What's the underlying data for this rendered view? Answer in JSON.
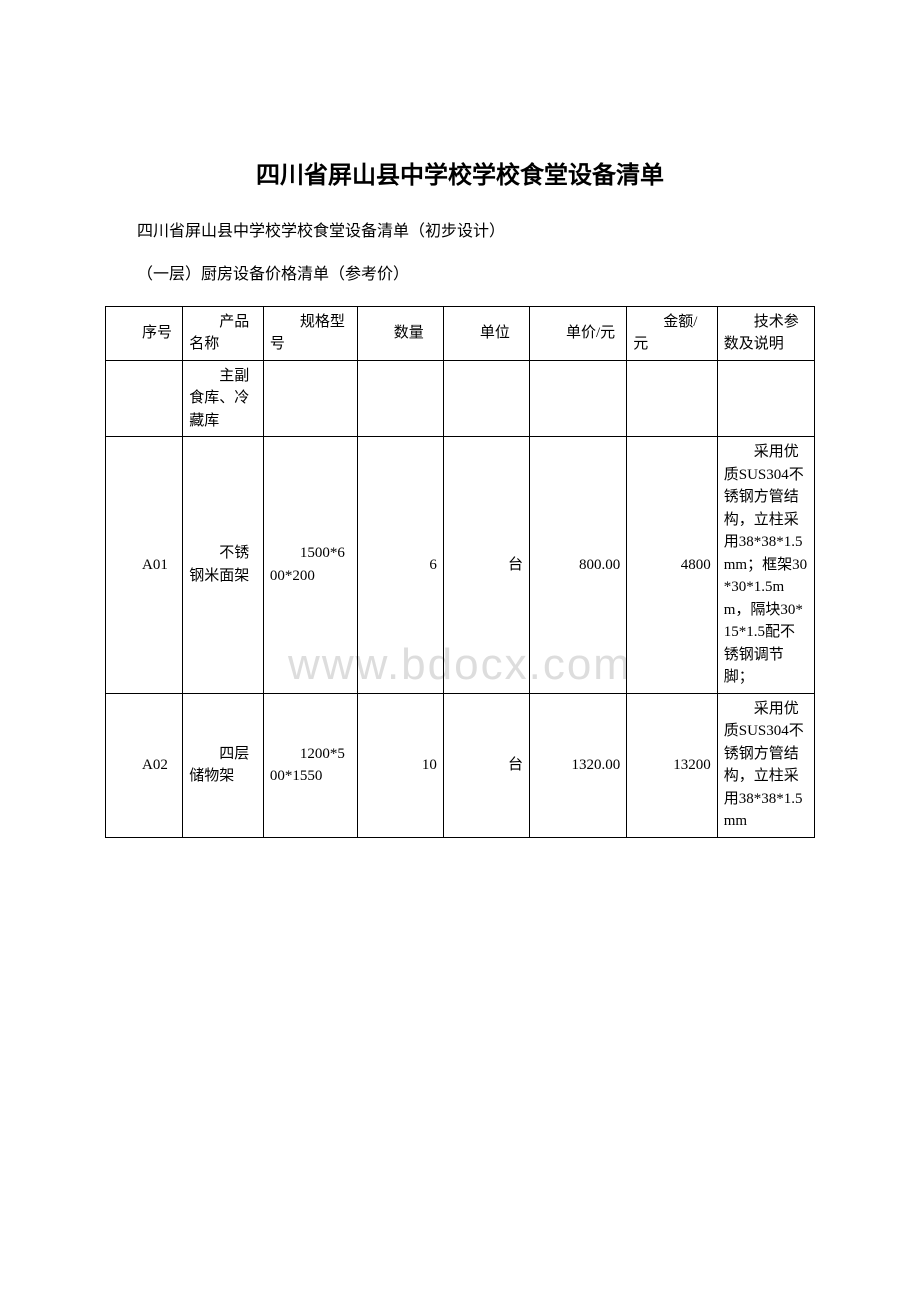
{
  "title": "四川省屏山县中学校学校食堂设备清单",
  "subtitle1": "四川省屏山县中学校学校食堂设备清单（初步设计）",
  "subtitle2": "（一层）厨房设备价格清单（参考价）",
  "watermark": "www.bdocx.com",
  "table": {
    "headers": {
      "col1": "序号",
      "col2": "产品名称",
      "col3": "规格型号",
      "col4": "数量",
      "col5": "单位",
      "col6": "单价/元",
      "col7": "金额/元",
      "col8": "技术参数及说明"
    },
    "section_row": {
      "col2": "主副食库、冷藏库"
    },
    "rows": [
      {
        "col1": "A01",
        "col2": "不锈钢米面架",
        "col3": "1500*600*200",
        "col4": "6",
        "col5": "台",
        "col6": "800.00",
        "col7": "4800",
        "col8": "采用优质SUS304不锈钢方管结构，立柱采用38*38*1.5mm；框架30*30*1.5mm，隔块30*15*1.5配不锈钢调节脚；"
      },
      {
        "col1": "A02",
        "col2": "四层储物架",
        "col3": "1200*500*1550",
        "col4": "10",
        "col5": "台",
        "col6": "1320.00",
        "col7": "13200",
        "col8": "采用优质SUS304不锈钢方管结构，立柱采用38*38*1.5mm"
      }
    ]
  }
}
